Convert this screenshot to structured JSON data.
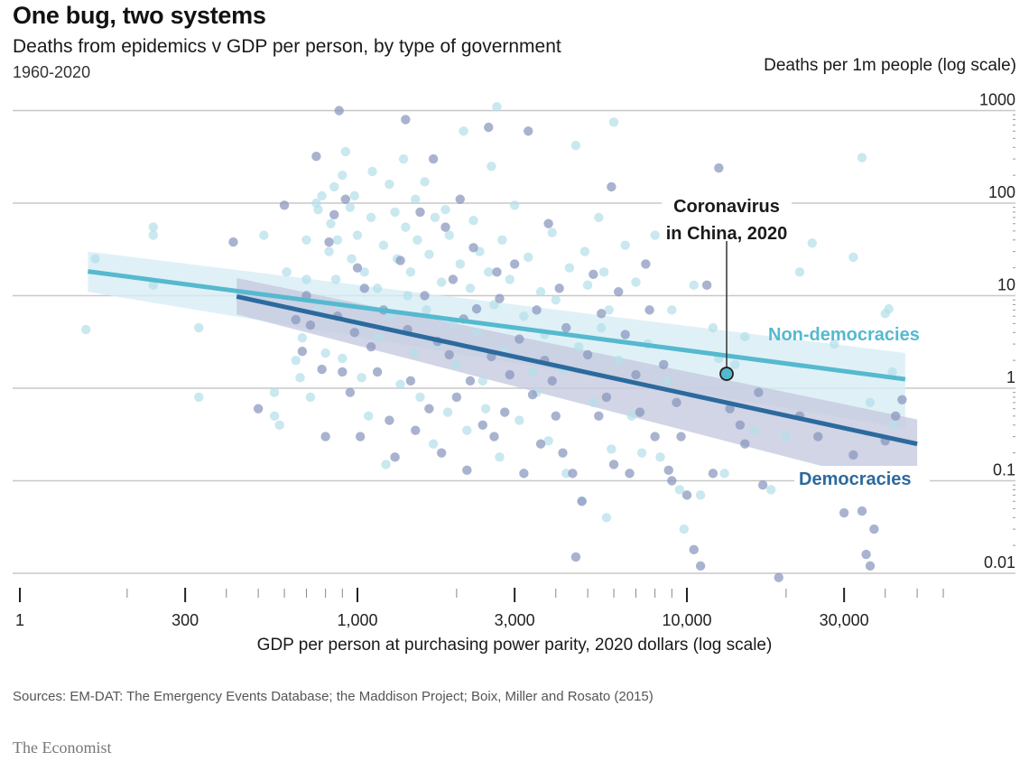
{
  "header": {
    "title": "One bug, two systems",
    "subtitle": "Deaths from epidemics v GDP per person, by type of government",
    "period": "1960-2020"
  },
  "footer": {
    "sources": "Sources: EM-DAT: The Emergency Events Database; the Maddison Project; Boix, Miller and Rosato (2015)",
    "brand": "The Economist"
  },
  "colors": {
    "democracies": "#2c6a9e",
    "democracies_points": "#8896bd",
    "democracies_band": "#c5cbe0",
    "non_democracies": "#55b9cf",
    "non_democracies_points": "#b4dfe9",
    "non_democracies_band": "#d7eef4",
    "gridline": "#c8c8c8"
  },
  "chart_data": {
    "type": "scatter",
    "title": "One bug, two systems",
    "subtitle": "Deaths from epidemics v GDP per person, by type of government",
    "xlabel": "GDP per person at purchasing power parity, 2020 dollars (log scale)",
    "ylabel": "Deaths per 1m people (log scale)",
    "x_scale": "log",
    "y_scale": "log",
    "xlim": [
      1,
      70000
    ],
    "ylim": [
      0.01,
      1000
    ],
    "x_axis_break": "between 1 and 200",
    "x_ticks": [
      {
        "value": 1,
        "label": "1"
      },
      {
        "value": 300,
        "label": "300"
      },
      {
        "value": 1000,
        "label": "1,000"
      },
      {
        "value": 3000,
        "label": "3,000"
      },
      {
        "value": 10000,
        "label": "10,000"
      },
      {
        "value": 30000,
        "label": "30,000"
      }
    ],
    "x_minor_ticks": [
      200,
      400,
      500,
      600,
      700,
      800,
      900,
      2000,
      4000,
      5000,
      6000,
      7000,
      8000,
      9000,
      20000,
      40000,
      50000,
      60000
    ],
    "y_ticks": [
      {
        "value": 1000,
        "label": "1000"
      },
      {
        "value": 100,
        "label": "100"
      },
      {
        "value": 10,
        "label": "10"
      },
      {
        "value": 1,
        "label": "1"
      },
      {
        "value": 0.1,
        "label": "0.1"
      },
      {
        "value": 0.01,
        "label": "0.01"
      }
    ],
    "grid": true,
    "series": [
      {
        "name": "Non-democracies",
        "label": "Non-democracies",
        "trend": {
          "x": [
            152,
            46000
          ],
          "y": [
            18.3,
            1.25
          ],
          "ci_low": [
            11.0,
            0.37
          ],
          "ci_high": [
            30.0,
            2.4
          ]
        },
        "points": [
          [
            150,
            4.3
          ],
          [
            160,
            25
          ],
          [
            240,
            45
          ],
          [
            240,
            55
          ],
          [
            240,
            13
          ],
          [
            330,
            0.8
          ],
          [
            330,
            4.5
          ],
          [
            520,
            45
          ],
          [
            560,
            0.9
          ],
          [
            560,
            0.5
          ],
          [
            580,
            0.4
          ],
          [
            610,
            18
          ],
          [
            650,
            2
          ],
          [
            670,
            1.3
          ],
          [
            680,
            3.5
          ],
          [
            700,
            15
          ],
          [
            700,
            40
          ],
          [
            720,
            0.8
          ],
          [
            750,
            100
          ],
          [
            760,
            7
          ],
          [
            760,
            85
          ],
          [
            780,
            120
          ],
          [
            800,
            2.4
          ],
          [
            820,
            30
          ],
          [
            830,
            60
          ],
          [
            850,
            150
          ],
          [
            860,
            15
          ],
          [
            870,
            40
          ],
          [
            880,
            8
          ],
          [
            900,
            2.1
          ],
          [
            900,
            200
          ],
          [
            920,
            360
          ],
          [
            950,
            90
          ],
          [
            960,
            25
          ],
          [
            980,
            120
          ],
          [
            1000,
            45
          ],
          [
            1010,
            5
          ],
          [
            1030,
            1.3
          ],
          [
            1050,
            18
          ],
          [
            1080,
            0.5
          ],
          [
            1100,
            70
          ],
          [
            1110,
            220
          ],
          [
            1150,
            12
          ],
          [
            1160,
            3.5
          ],
          [
            1200,
            35
          ],
          [
            1220,
            0.15
          ],
          [
            1250,
            160
          ],
          [
            1260,
            6
          ],
          [
            1300,
            80
          ],
          [
            1320,
            25
          ],
          [
            1350,
            1.1
          ],
          [
            1380,
            300
          ],
          [
            1400,
            55
          ],
          [
            1420,
            10
          ],
          [
            1450,
            18
          ],
          [
            1480,
            2.4
          ],
          [
            1500,
            110
          ],
          [
            1520,
            40
          ],
          [
            1550,
            0.8
          ],
          [
            1600,
            170
          ],
          [
            1620,
            7
          ],
          [
            1650,
            28
          ],
          [
            1700,
            0.25
          ],
          [
            1720,
            70
          ],
          [
            1750,
            3
          ],
          [
            1800,
            14
          ],
          [
            1850,
            85
          ],
          [
            1880,
            0.55
          ],
          [
            1900,
            45
          ],
          [
            1950,
            5
          ],
          [
            2000,
            1.8
          ],
          [
            2050,
            22
          ],
          [
            2100,
            600
          ],
          [
            2150,
            0.35
          ],
          [
            2200,
            12
          ],
          [
            2250,
            65
          ],
          [
            2300,
            4
          ],
          [
            2350,
            30
          ],
          [
            2400,
            1.2
          ],
          [
            2450,
            0.6
          ],
          [
            2500,
            18
          ],
          [
            2550,
            250
          ],
          [
            2600,
            8
          ],
          [
            2650,
            1100
          ],
          [
            2700,
            0.18
          ],
          [
            2750,
            40
          ],
          [
            2800,
            2.5
          ],
          [
            2900,
            15
          ],
          [
            3000,
            95
          ],
          [
            3100,
            0.45
          ],
          [
            3200,
            6
          ],
          [
            3300,
            26
          ],
          [
            3400,
            1.5
          ],
          [
            3500,
            0.9
          ],
          [
            3600,
            11
          ],
          [
            3700,
            3.8
          ],
          [
            3800,
            0.27
          ],
          [
            3900,
            48
          ],
          [
            4000,
            9
          ],
          [
            4200,
            1.6
          ],
          [
            4300,
            0.12
          ],
          [
            4400,
            20
          ],
          [
            4600,
            420
          ],
          [
            4700,
            2.8
          ],
          [
            4800,
            0.06
          ],
          [
            4900,
            30
          ],
          [
            5000,
            13
          ],
          [
            5200,
            0.7
          ],
          [
            5400,
            70
          ],
          [
            5500,
            4.5
          ],
          [
            5600,
            18
          ],
          [
            5700,
            0.04
          ],
          [
            5800,
            7
          ],
          [
            5900,
            0.22
          ],
          [
            6000,
            750
          ],
          [
            6200,
            2
          ],
          [
            6500,
            35
          ],
          [
            6800,
            0.5
          ],
          [
            7000,
            14
          ],
          [
            7300,
            0.2
          ],
          [
            7600,
            3
          ],
          [
            8000,
            45
          ],
          [
            8300,
            0.18
          ],
          [
            8700,
            1.2
          ],
          [
            9000,
            7
          ],
          [
            9500,
            0.08
          ],
          [
            9800,
            0.03
          ],
          [
            10500,
            13
          ],
          [
            11000,
            0.07
          ],
          [
            12000,
            4.5
          ],
          [
            12500,
            2.1
          ],
          [
            13000,
            0.12
          ],
          [
            14000,
            1.8
          ],
          [
            15000,
            3.6
          ],
          [
            16000,
            0.35
          ],
          [
            18000,
            0.08
          ],
          [
            20000,
            0.3
          ],
          [
            22000,
            18
          ],
          [
            24000,
            37
          ],
          [
            28000,
            3
          ],
          [
            32000,
            26
          ],
          [
            34000,
            310
          ],
          [
            36000,
            0.7
          ],
          [
            40000,
            6.4
          ],
          [
            41000,
            7.2
          ],
          [
            42000,
            1.5
          ],
          [
            42500,
            0.4
          ],
          [
            43000,
            0.12
          ]
        ]
      },
      {
        "name": "Democracies",
        "label": "Democracies",
        "trend": {
          "x": [
            430,
            50000
          ],
          "y": [
            9.8,
            0.25
          ],
          "ci_low": [
            6.3,
            0.078
          ],
          "ci_high": [
            15.5,
            0.46
          ]
        },
        "points": [
          [
            420,
            38
          ],
          [
            500,
            0.6
          ],
          [
            600,
            95
          ],
          [
            650,
            5.5
          ],
          [
            680,
            2.5
          ],
          [
            700,
            10
          ],
          [
            720,
            4.8
          ],
          [
            750,
            320
          ],
          [
            780,
            1.6
          ],
          [
            800,
            0.3
          ],
          [
            820,
            38
          ],
          [
            850,
            75
          ],
          [
            870,
            6
          ],
          [
            880,
            1000
          ],
          [
            900,
            1.5
          ],
          [
            920,
            110
          ],
          [
            950,
            0.9
          ],
          [
            980,
            4
          ],
          [
            1000,
            20
          ],
          [
            1020,
            0.3
          ],
          [
            1050,
            12
          ],
          [
            1100,
            2.8
          ],
          [
            1150,
            1.5
          ],
          [
            1200,
            7
          ],
          [
            1250,
            0.45
          ],
          [
            1300,
            0.18
          ],
          [
            1350,
            24
          ],
          [
            1400,
            800
          ],
          [
            1420,
            4.3
          ],
          [
            1450,
            1.2
          ],
          [
            1500,
            0.35
          ],
          [
            1550,
            80
          ],
          [
            1600,
            10
          ],
          [
            1650,
            0.6
          ],
          [
            1700,
            300
          ],
          [
            1750,
            3.2
          ],
          [
            1800,
            0.2
          ],
          [
            1850,
            55
          ],
          [
            1900,
            2.3
          ],
          [
            1950,
            15
          ],
          [
            2000,
            0.8
          ],
          [
            2050,
            110
          ],
          [
            2100,
            5.6
          ],
          [
            2150,
            0.13
          ],
          [
            2200,
            1.2
          ],
          [
            2250,
            33
          ],
          [
            2300,
            7.2
          ],
          [
            2400,
            0.4
          ],
          [
            2500,
            660
          ],
          [
            2550,
            2.2
          ],
          [
            2600,
            0.3
          ],
          [
            2650,
            18
          ],
          [
            2700,
            9.3
          ],
          [
            2800,
            0.55
          ],
          [
            2900,
            1.4
          ],
          [
            3000,
            22
          ],
          [
            3100,
            3.4
          ],
          [
            3200,
            0.12
          ],
          [
            3300,
            600
          ],
          [
            3400,
            0.85
          ],
          [
            3500,
            7
          ],
          [
            3600,
            0.25
          ],
          [
            3700,
            2
          ],
          [
            3800,
            60
          ],
          [
            3900,
            1.2
          ],
          [
            4000,
            0.5
          ],
          [
            4100,
            12
          ],
          [
            4200,
            0.2
          ],
          [
            4300,
            4.5
          ],
          [
            4500,
            0.12
          ],
          [
            4600,
            0.015
          ],
          [
            4800,
            0.06
          ],
          [
            5000,
            2.3
          ],
          [
            5200,
            17
          ],
          [
            5400,
            0.5
          ],
          [
            5500,
            6.4
          ],
          [
            5700,
            0.8
          ],
          [
            5900,
            150
          ],
          [
            6000,
            0.15
          ],
          [
            6200,
            11
          ],
          [
            6500,
            3.8
          ],
          [
            6700,
            0.12
          ],
          [
            7000,
            1.4
          ],
          [
            7200,
            0.55
          ],
          [
            7500,
            22
          ],
          [
            7700,
            7
          ],
          [
            8000,
            0.3
          ],
          [
            8500,
            1.8
          ],
          [
            8800,
            0.13
          ],
          [
            9000,
            0.1
          ],
          [
            9300,
            0.7
          ],
          [
            9600,
            0.3
          ],
          [
            10000,
            0.07
          ],
          [
            10500,
            0.018
          ],
          [
            11000,
            0.012
          ],
          [
            11500,
            13
          ],
          [
            12000,
            0.12
          ],
          [
            12500,
            240
          ],
          [
            13000,
            1.5
          ],
          [
            13500,
            0.6
          ],
          [
            14500,
            0.4
          ],
          [
            15000,
            0.25
          ],
          [
            16500,
            0.9
          ],
          [
            17000,
            0.09
          ],
          [
            19000,
            0.009
          ],
          [
            22000,
            0.5
          ],
          [
            25000,
            0.3
          ],
          [
            30000,
            0.045
          ],
          [
            32000,
            0.19
          ],
          [
            34000,
            0.047
          ],
          [
            35000,
            0.016
          ],
          [
            36000,
            0.012
          ],
          [
            37000,
            0.03
          ],
          [
            38000,
            0.09
          ],
          [
            40000,
            0.27
          ],
          [
            43000,
            0.5
          ],
          [
            45000,
            0.75
          ]
        ]
      }
    ],
    "annotations": [
      {
        "text_lines": [
          "Coronavirus",
          "in China, 2020"
        ],
        "point": {
          "gdp": 13200,
          "deaths": 1.43
        },
        "series": "Non-democracies"
      }
    ],
    "legend": "inline labels: Non-democracies (right, above trend), Democracies (bottom-right, below trend)"
  }
}
